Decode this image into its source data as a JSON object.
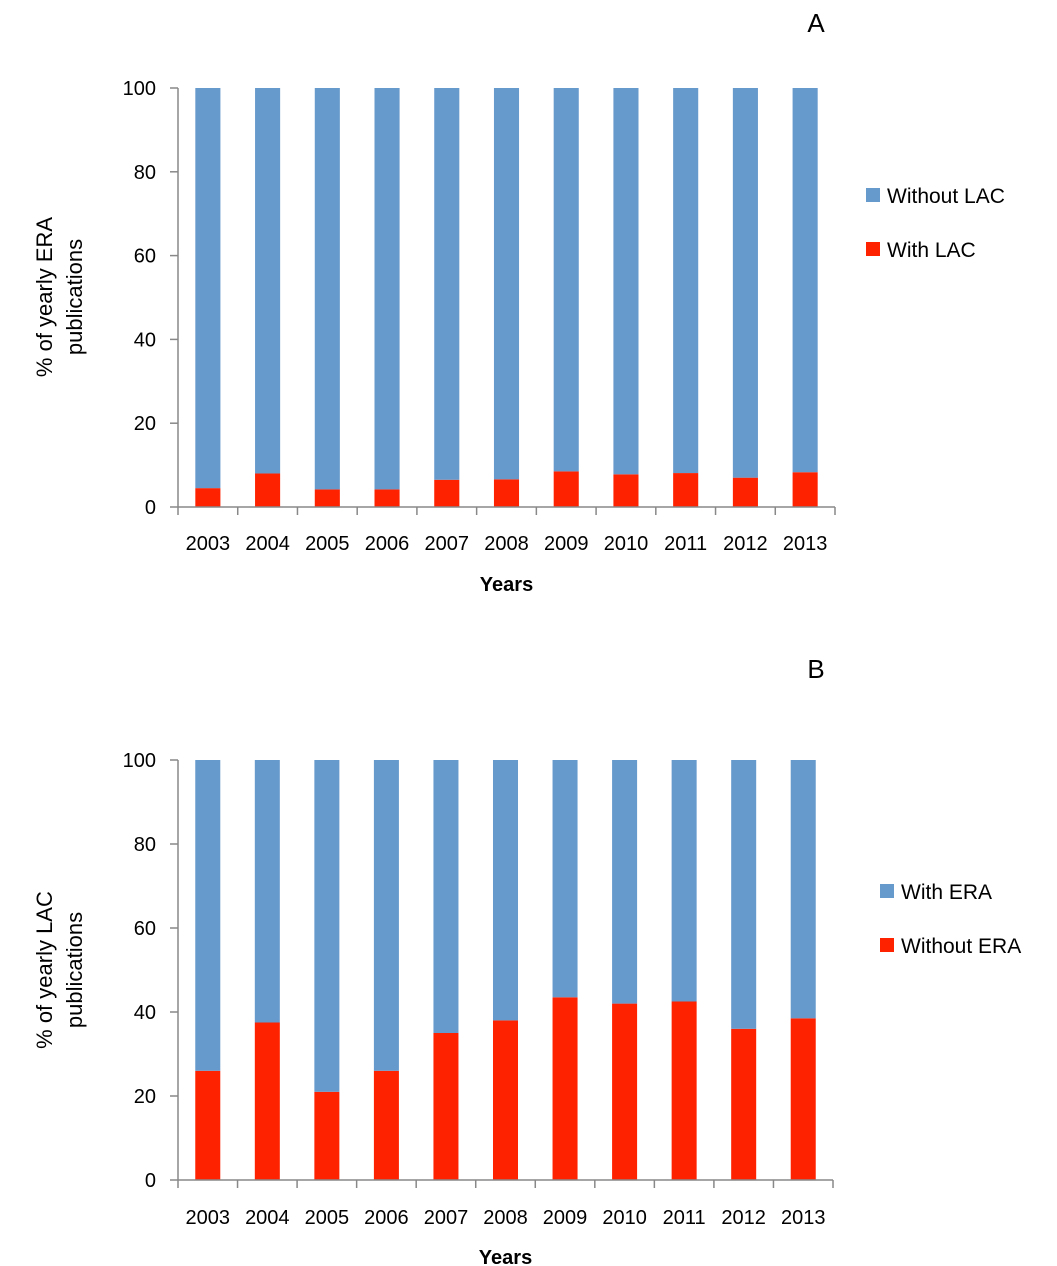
{
  "chart_data": [
    {
      "type": "bar",
      "stacked": true,
      "panel": "A",
      "categories": [
        "2003",
        "2004",
        "2005",
        "2006",
        "2007",
        "2008",
        "2009",
        "2010",
        "2011",
        "2012",
        "2013"
      ],
      "series": [
        {
          "name": "With LAC",
          "color": "#ff2200",
          "values": [
            4.5,
            8.0,
            4.2,
            4.2,
            6.5,
            6.6,
            8.5,
            7.8,
            8.1,
            7.0,
            8.3
          ]
        },
        {
          "name": "Without LAC",
          "color": "#6699cc",
          "values": [
            95.5,
            92.0,
            95.8,
            95.8,
            93.5,
            93.4,
            91.5,
            92.2,
            91.9,
            93.0,
            91.7
          ]
        }
      ],
      "legend_order": [
        1,
        0
      ],
      "xlabel": "Years",
      "ylabel": [
        "% of yearly ERA",
        "publications"
      ],
      "ylim": [
        0,
        100
      ],
      "yticks": [
        "0",
        "20",
        "40",
        "60",
        "80",
        "100"
      ],
      "legend_position": "right",
      "grid": false
    },
    {
      "type": "bar",
      "stacked": true,
      "panel": "B",
      "categories": [
        "2003",
        "2004",
        "2005",
        "2006",
        "2007",
        "2008",
        "2009",
        "2010",
        "2011",
        "2012",
        "2013"
      ],
      "series": [
        {
          "name": "Without ERA",
          "color": "#ff2200",
          "values": [
            26,
            37.5,
            21,
            26,
            35,
            38,
            43.5,
            42,
            42.5,
            36,
            38.5
          ]
        },
        {
          "name": "With ERA",
          "color": "#6699cc",
          "values": [
            74,
            62.5,
            79,
            74,
            65,
            62,
            56.5,
            58,
            57.5,
            64,
            61.5
          ]
        }
      ],
      "legend_order": [
        1,
        0
      ],
      "xlabel": "Years",
      "ylabel": [
        "% of yearly LAC",
        "publications"
      ],
      "ylim": [
        0,
        100
      ],
      "yticks": [
        "0",
        "20",
        "40",
        "60",
        "80",
        "100"
      ],
      "legend_position": "right",
      "grid": false
    }
  ]
}
